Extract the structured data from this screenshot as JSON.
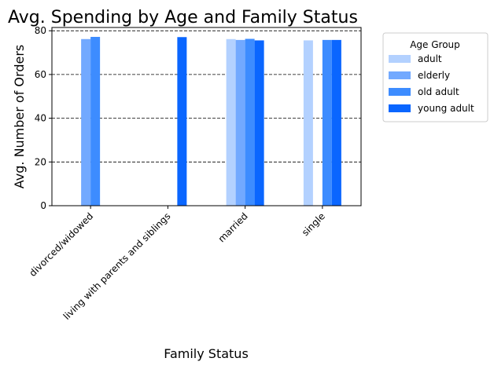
{
  "chart_data": {
    "type": "bar",
    "title": "Avg. Spending by Age and Family Status",
    "xlabel": "Family Status",
    "ylabel": "Avg. Number of Orders",
    "categories": [
      "divorced/widowed",
      "living with parents and siblings",
      "married",
      "single"
    ],
    "series": [
      {
        "name": "adult",
        "color": "#b3d1ff",
        "values": [
          null,
          null,
          76.2,
          75.6
        ]
      },
      {
        "name": "elderly",
        "color": "#72a9ff",
        "values": [
          76.2,
          null,
          75.8,
          null
        ]
      },
      {
        "name": "old adult",
        "color": "#3d8cff",
        "values": [
          77.2,
          null,
          76.3,
          75.8
        ]
      },
      {
        "name": "young adult",
        "color": "#0a66ff",
        "values": [
          null,
          77.1,
          75.6,
          75.8
        ]
      }
    ],
    "ylim": [
      0,
      81.5
    ],
    "yticks": [
      0,
      20,
      40,
      60,
      80
    ],
    "grid": "horizontal dashed",
    "legend": {
      "title": "Age Group",
      "placement": "outside right"
    }
  }
}
